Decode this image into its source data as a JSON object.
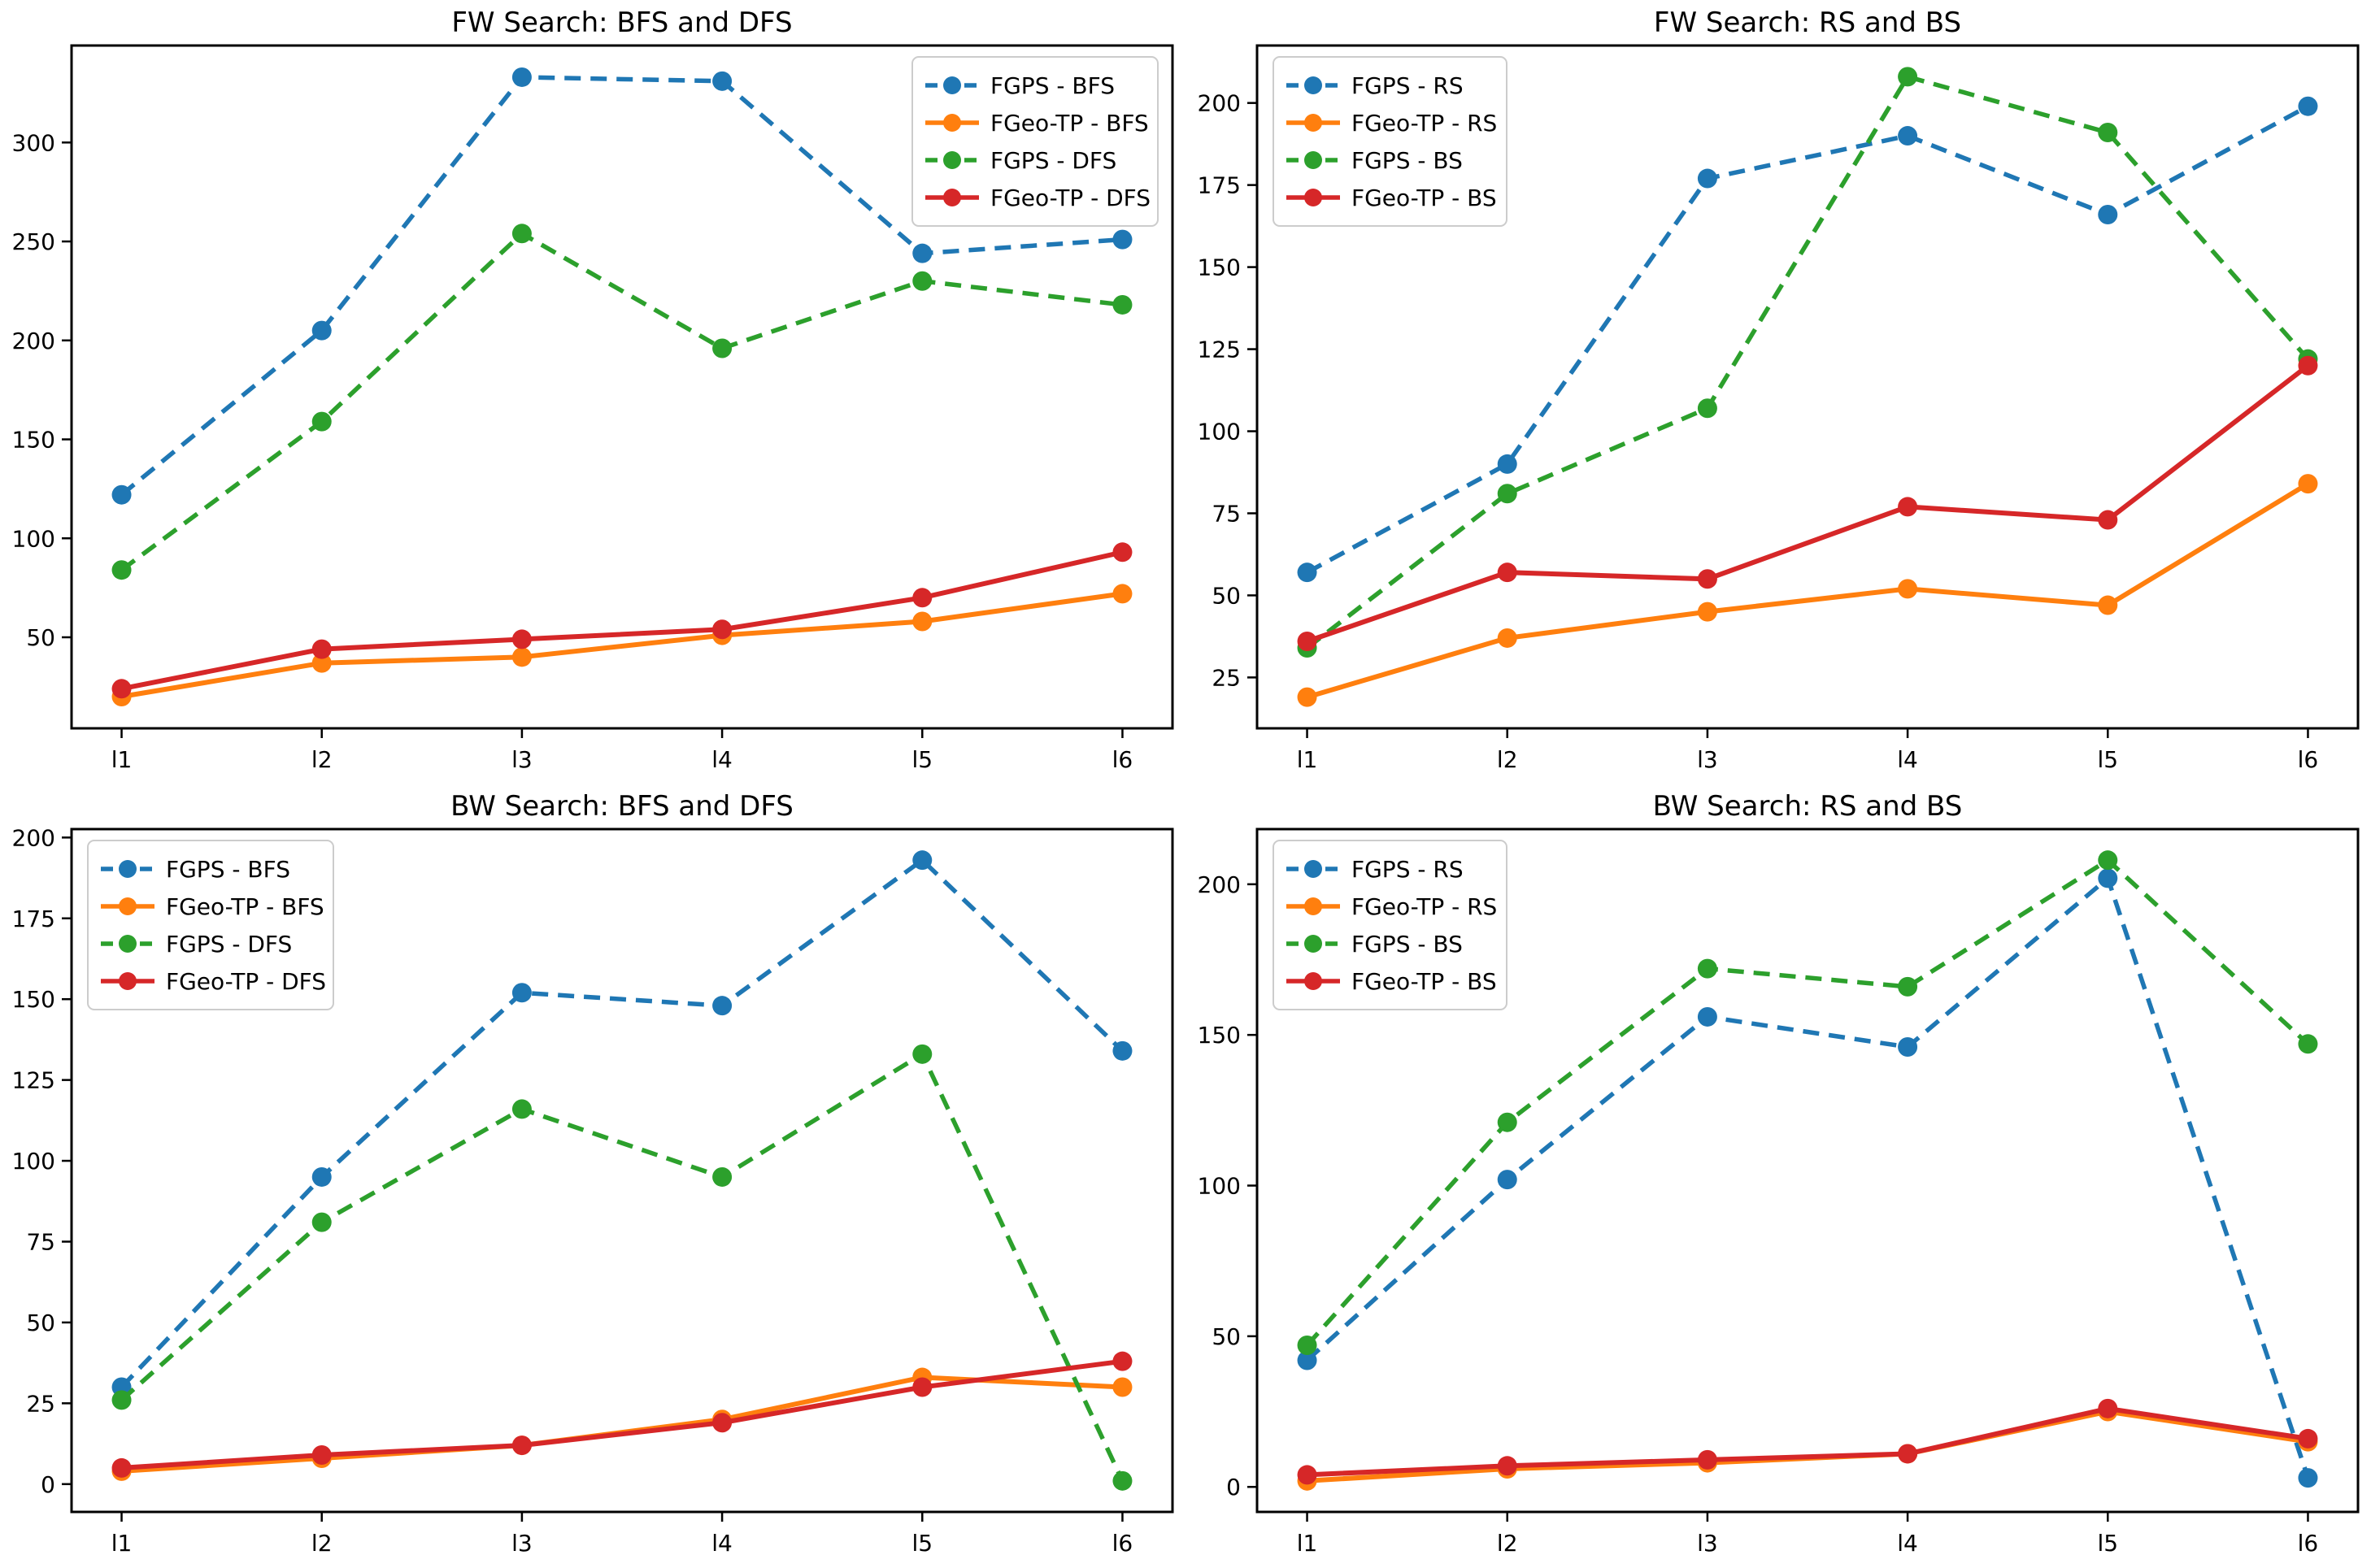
{
  "figure": {
    "background": "#ffffff",
    "text_color": "#000000",
    "axis_color": "#000000",
    "legend_border_color": "#cccccc",
    "legend_fill": "#ffffff"
  },
  "chart_data": [
    {
      "type": "line",
      "title": "FW Search: BFS and DFS",
      "categories": [
        "l1",
        "l2",
        "l3",
        "l4",
        "l5",
        "l6"
      ],
      "series": [
        {
          "name": "FGPS - BFS",
          "color": "#1f77b4",
          "line": "dashed",
          "marker": "circle",
          "values": [
            122,
            205,
            333,
            331,
            244,
            251
          ]
        },
        {
          "name": "FGeo-TP - BFS",
          "color": "#ff7f0e",
          "line": "solid",
          "marker": "circle",
          "values": [
            20,
            37,
            40,
            51,
            58,
            72
          ]
        },
        {
          "name": "FGPS - DFS",
          "color": "#2ca02c",
          "line": "dashed",
          "marker": "circle",
          "values": [
            84,
            159,
            254,
            196,
            230,
            218
          ]
        },
        {
          "name": "FGeo-TP - DFS",
          "color": "#d62728",
          "line": "solid",
          "marker": "circle",
          "values": [
            24,
            44,
            49,
            54,
            70,
            93
          ]
        }
      ],
      "xlabel": "",
      "ylabel": "",
      "yticks": [
        50,
        100,
        150,
        200,
        250,
        300
      ],
      "ylim": [
        4,
        349
      ],
      "grid": false,
      "legend_position": "upper-right"
    },
    {
      "type": "line",
      "title": "FW Search: RS and BS",
      "categories": [
        "l1",
        "l2",
        "l3",
        "l4",
        "l5",
        "l6"
      ],
      "series": [
        {
          "name": "FGPS - RS",
          "color": "#1f77b4",
          "line": "dashed",
          "marker": "circle",
          "values": [
            57,
            90,
            177,
            190,
            166,
            199
          ]
        },
        {
          "name": "FGeo-TP - RS",
          "color": "#ff7f0e",
          "line": "solid",
          "marker": "circle",
          "values": [
            19,
            37,
            45,
            52,
            47,
            84
          ]
        },
        {
          "name": "FGPS - BS",
          "color": "#2ca02c",
          "line": "dashed",
          "marker": "circle",
          "values": [
            34,
            81,
            107,
            208,
            191,
            122
          ]
        },
        {
          "name": "FGeo-TP - BS",
          "color": "#d62728",
          "line": "solid",
          "marker": "circle",
          "values": [
            36,
            57,
            55,
            77,
            73,
            120
          ]
        }
      ],
      "xlabel": "",
      "ylabel": "",
      "yticks": [
        25,
        50,
        75,
        100,
        125,
        150,
        175,
        200
      ],
      "ylim": [
        9.5,
        217.5
      ],
      "grid": false,
      "legend_position": "upper-left"
    },
    {
      "type": "line",
      "title": "BW Search: BFS and DFS",
      "categories": [
        "l1",
        "l2",
        "l3",
        "l4",
        "l5",
        "l6"
      ],
      "series": [
        {
          "name": "FGPS - BFS",
          "color": "#1f77b4",
          "line": "dashed",
          "marker": "circle",
          "values": [
            30,
            95,
            152,
            148,
            193,
            134
          ]
        },
        {
          "name": "FGeo-TP - BFS",
          "color": "#ff7f0e",
          "line": "solid",
          "marker": "circle",
          "values": [
            4,
            8,
            12,
            20,
            33,
            30
          ]
        },
        {
          "name": "FGPS - DFS",
          "color": "#2ca02c",
          "line": "dashed",
          "marker": "circle",
          "values": [
            26,
            81,
            116,
            95,
            133,
            1
          ]
        },
        {
          "name": "FGeo-TP - DFS",
          "color": "#d62728",
          "line": "solid",
          "marker": "circle",
          "values": [
            5,
            9,
            12,
            19,
            30,
            38
          ]
        }
      ],
      "xlabel": "",
      "ylabel": "",
      "yticks": [
        0,
        25,
        50,
        75,
        100,
        125,
        150,
        175,
        200
      ],
      "ylim": [
        -8.6,
        202.6
      ],
      "grid": false,
      "legend_position": "upper-left"
    },
    {
      "type": "line",
      "title": "BW Search: RS and BS",
      "categories": [
        "l1",
        "l2",
        "l3",
        "l4",
        "l5",
        "l6"
      ],
      "series": [
        {
          "name": "FGPS - RS",
          "color": "#1f77b4",
          "line": "dashed",
          "marker": "circle",
          "values": [
            42,
            102,
            156,
            146,
            202,
            3
          ]
        },
        {
          "name": "FGeo-TP - RS",
          "color": "#ff7f0e",
          "line": "solid",
          "marker": "circle",
          "values": [
            2,
            6,
            8,
            11,
            25,
            15
          ]
        },
        {
          "name": "FGPS - BS",
          "color": "#2ca02c",
          "line": "dashed",
          "marker": "circle",
          "values": [
            47,
            121,
            172,
            166,
            208,
            147
          ]
        },
        {
          "name": "FGeo-TP - BS",
          "color": "#d62728",
          "line": "solid",
          "marker": "circle",
          "values": [
            4,
            7,
            9,
            11,
            26,
            16
          ]
        }
      ],
      "xlabel": "",
      "ylabel": "",
      "yticks": [
        0,
        50,
        100,
        150,
        200
      ],
      "ylim": [
        -8.3,
        218.3
      ],
      "grid": false,
      "legend_position": "upper-left"
    }
  ]
}
